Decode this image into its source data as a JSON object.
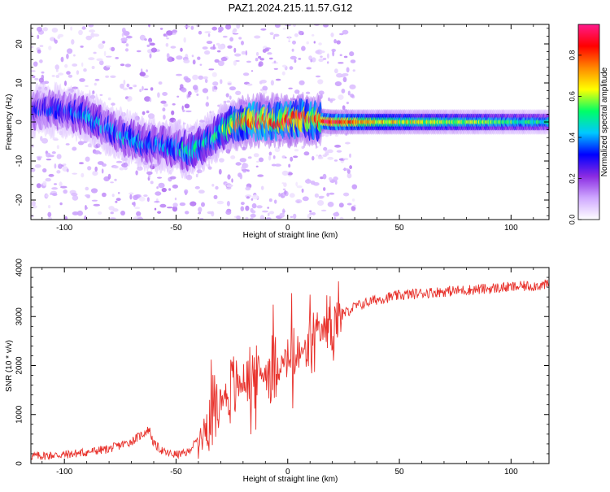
{
  "figure_title": "PAZ1.2024.215.11.57.G12",
  "colors": {
    "snr_line": "#e8322c",
    "axes": "#000000",
    "background": "#ffffff"
  },
  "colormap": [
    "#ffffff",
    "#cfa8ff",
    "#8a2be2",
    "#0000ff",
    "#00c8ff",
    "#00ff66",
    "#ffff00",
    "#ff8800",
    "#ff0000",
    "#ff1a8c"
  ],
  "chart_data": [
    {
      "type": "heatmap",
      "title": "PAZ1.2024.215.11.57.G12",
      "xlabel": "Height of straight line (km)",
      "ylabel": "Frequency (Hz)",
      "xlim": [
        -115,
        117
      ],
      "ylim": [
        -25,
        25
      ],
      "x_ticks": [
        -100,
        -50,
        0,
        50,
        100
      ],
      "y_ticks": [
        -20,
        -10,
        0,
        10,
        20
      ],
      "colorbar": {
        "label": "Normalized spectral amplitude",
        "range": [
          0,
          0.95
        ],
        "ticks": [
          0.0,
          0.2,
          0.4,
          0.6,
          0.8
        ]
      },
      "ridge": {
        "x": [
          -100,
          -90,
          -80,
          -70,
          -60,
          -50,
          -45,
          -40,
          -35,
          -30,
          -25,
          -20,
          -15,
          -10,
          -5,
          0,
          5,
          10,
          20,
          40,
          60,
          80,
          100,
          117
        ],
        "y": [
          3,
          1.5,
          -2,
          -4.5,
          -6,
          -6.5,
          -7.5,
          -6.5,
          -4.5,
          -2.5,
          -1,
          0.5,
          0.2,
          0.4,
          0.3,
          0.5,
          1,
          0.5,
          0,
          0,
          0,
          0,
          0,
          0
        ],
        "amplitude": [
          0.35,
          0.45,
          0.4,
          0.45,
          0.4,
          0.45,
          0.5,
          0.5,
          0.5,
          0.55,
          0.7,
          0.85,
          0.9,
          0.9,
          0.85,
          0.9,
          0.9,
          0.85,
          0.9,
          0.7,
          0.65,
          0.6,
          0.55,
          0.5
        ]
      },
      "grid": false
    },
    {
      "type": "line",
      "xlabel": "Height of straight line (km)",
      "ylabel": "SNR (10 * v/v)",
      "xlim": [
        -115,
        117
      ],
      "ylim": [
        0,
        4000
      ],
      "x_ticks": [
        -100,
        -50,
        0,
        50,
        100
      ],
      "y_ticks": [
        0,
        1000,
        2000,
        3000,
        4000
      ],
      "trend": {
        "x": [
          -115,
          -100,
          -90,
          -80,
          -70,
          -65,
          -62,
          -60,
          -55,
          -50,
          -45,
          -40,
          -35,
          -30,
          -25,
          -20,
          -15,
          -10,
          -5,
          0,
          5,
          10,
          15,
          20,
          25,
          30,
          40,
          50,
          60,
          80,
          100,
          117
        ],
        "y": [
          150,
          180,
          230,
          300,
          450,
          600,
          700,
          400,
          220,
          180,
          220,
          500,
          900,
          1300,
          1500,
          1650,
          1800,
          1850,
          2000,
          2100,
          2200,
          2400,
          2650,
          2900,
          3050,
          3200,
          3350,
          3430,
          3480,
          3540,
          3600,
          3650
        ]
      },
      "grid": false
    }
  ]
}
